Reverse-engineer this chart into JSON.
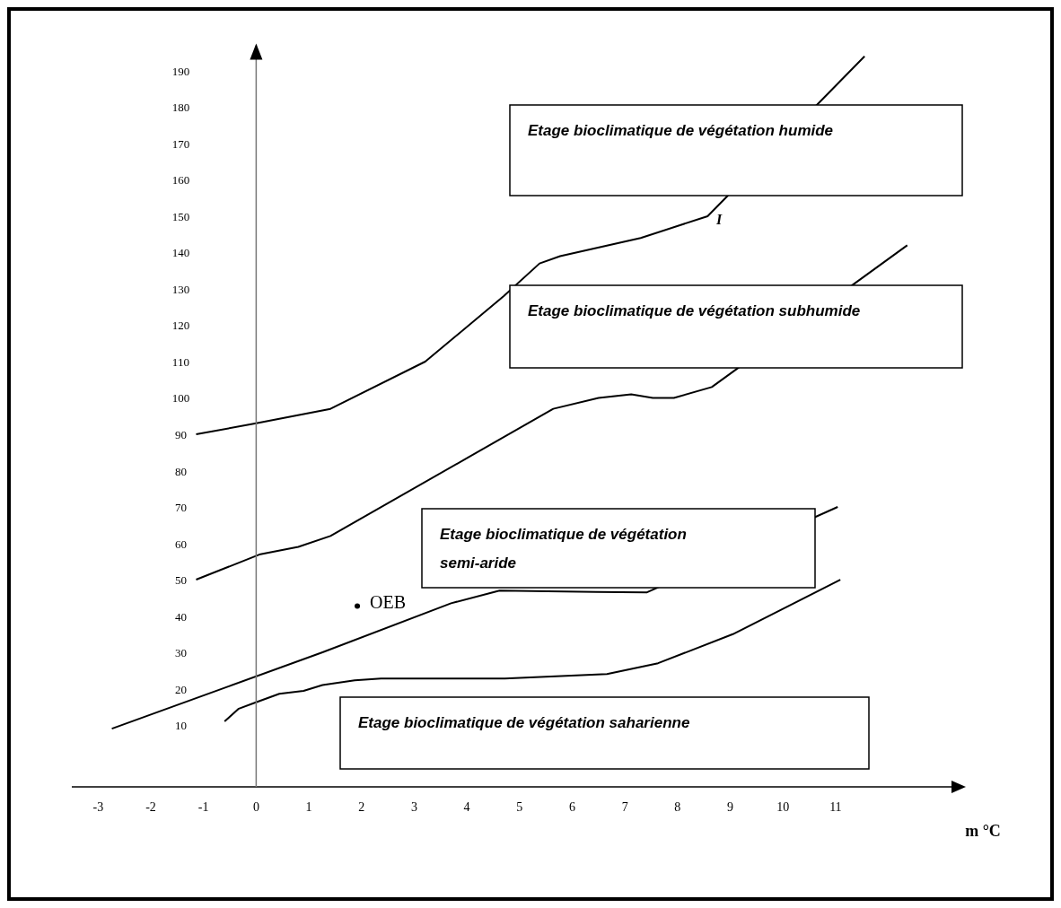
{
  "chart_data": {
    "type": "line",
    "xlabel": "m °C",
    "xlim": [
      -3.5,
      13.2
    ],
    "ylim": [
      -7,
      197
    ],
    "xticks": [
      -3,
      -2,
      -1,
      0,
      1,
      2,
      3,
      4,
      5,
      6,
      7,
      8,
      9,
      10,
      11
    ],
    "yticks": [
      10,
      20,
      30,
      40,
      50,
      60,
      70,
      80,
      90,
      100,
      110,
      120,
      130,
      140,
      150,
      160,
      170,
      180,
      190
    ],
    "marker": "none",
    "line_style": "solid",
    "series": [
      {
        "color": "#000000",
        "x": [
          -1.14,
          0,
          1.41,
          3.21,
          4.7,
          5.38,
          5.77,
          7.3,
          8.57,
          11.55
        ],
        "values": [
          90,
          93,
          97,
          110,
          128,
          137,
          139,
          144,
          150,
          194
        ]
      },
      {
        "color": "#000000",
        "x": [
          -1.14,
          0.08,
          0.8,
          1.41,
          5.64,
          6.5,
          7.12,
          7.53,
          7.93,
          8.65,
          12.36
        ],
        "values": [
          50,
          57,
          59,
          62,
          97,
          100,
          101,
          100,
          100,
          103,
          142
        ]
      },
      {
        "color": "#000000",
        "x": [
          -2.74,
          1.26,
          3.7,
          4.62,
          6.45,
          7.42,
          11.04
        ],
        "values": [
          9,
          30,
          43.5,
          47,
          46.6,
          46.5,
          70
        ]
      },
      {
        "color": "#000000",
        "x": [
          -0.6,
          -0.33,
          -0.05,
          0.44,
          0.9,
          1.26,
          1.87,
          2.37,
          4.72,
          6.66,
          7.63,
          9.05,
          11.09
        ],
        "values": [
          11,
          14.5,
          16,
          18.6,
          19.4,
          21,
          22.3,
          22.8,
          22.8,
          24,
          27,
          35,
          50
        ]
      },
      {
        "type": "scatter",
        "name": "OEB",
        "color": "#000000",
        "marker": "circle",
        "x": [
          1.92
        ],
        "values": [
          42.7
        ]
      }
    ],
    "annotations": [
      "Etage bioclimatique de végétation humide",
      "Etage bioclimatique de végétation subhumide",
      "Etage bioclimatique de végétation semi-aride",
      "Etage bioclimatique de végétation saharienne",
      "I"
    ]
  }
}
